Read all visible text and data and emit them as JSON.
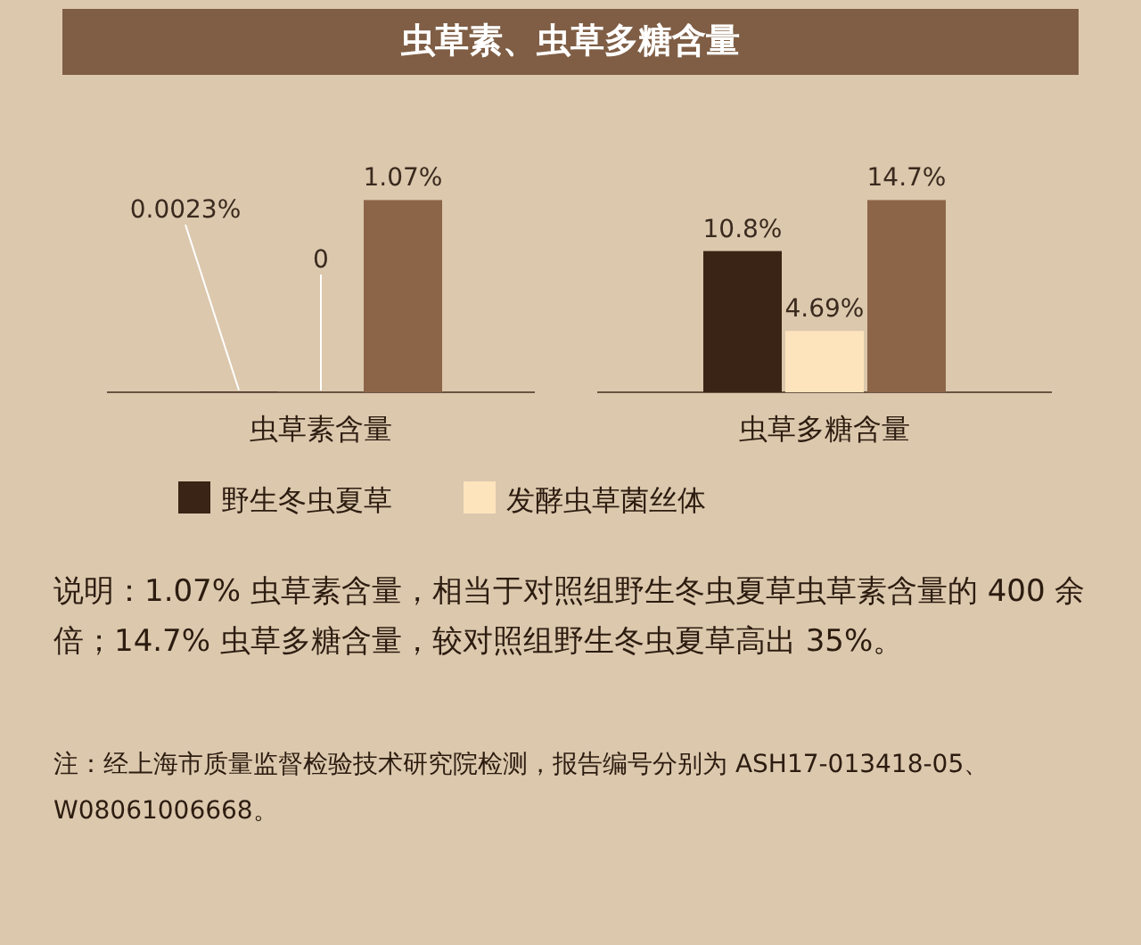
{
  "chart_data": [
    {
      "type": "bar",
      "title": "虫草素、虫草多糖含量",
      "categories": [
        "虫草素含量"
      ],
      "series": [
        {
          "name": "野生冬虫夏草",
          "color": "#3a2416",
          "values": [
            0.0023
          ],
          "value_labels": [
            "0.0023%"
          ]
        },
        {
          "name": "发酵虫草菌丝体",
          "color": "#fde4bd",
          "values": [
            0
          ],
          "value_labels": [
            "0"
          ]
        },
        {
          "color": "#8c6548",
          "values": [
            1.07
          ],
          "value_labels": [
            "1.07%"
          ]
        }
      ],
      "legend": "bottom"
    },
    {
      "type": "bar",
      "categories": [
        "虫草多糖含量"
      ],
      "series": [
        {
          "color": "#3a2416",
          "values": [
            10.8
          ],
          "value_labels": [
            "10.8%"
          ]
        },
        {
          "color": "#fde4bd",
          "values": [
            4.69
          ],
          "value_labels": [
            "4.69%"
          ]
        },
        {
          "color": "#8c6548",
          "values": [
            14.7
          ],
          "value_labels": [
            "14.7%"
          ]
        }
      ],
      "annotations": [
        "说明：1.07% 虫草素含量，相当于对照组野生冬虫夏草虫草素含量的 400 余倍；14.7% 虫草多糖含量，较对照组野生冬虫夏草高出 35%。",
        "注：经上海市质量监督检验技术研究院检测，报告编号分别为 ASH17-013418-05、W08061006668。"
      ]
    }
  ]
}
